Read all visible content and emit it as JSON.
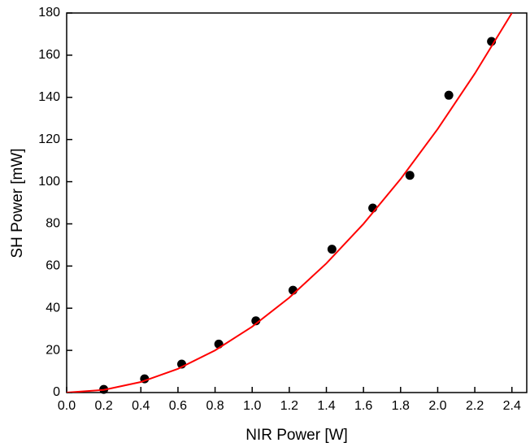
{
  "chart_data": {
    "type": "scatter",
    "x_label": "NIR Power [W]",
    "y_label": "SH Power [mW]",
    "xlim": [
      0,
      2.48
    ],
    "ylim": [
      0,
      180
    ],
    "xticks": [
      {
        "value": 0.0,
        "label": "0.0"
      },
      0.2,
      0.4,
      0.6,
      0.8,
      {
        "value": 1.0,
        "label": "1.0"
      },
      1.2,
      1.4,
      1.6,
      1.8,
      {
        "value": 2.0,
        "label": "2.0"
      },
      2.2,
      2.4
    ],
    "yticks": [
      0,
      20,
      40,
      60,
      80,
      100,
      120,
      140,
      160,
      180
    ],
    "series": [
      {
        "kind": "points",
        "color": "#000000",
        "x": [
          0.2,
          0.42,
          0.62,
          0.82,
          1.02,
          1.22,
          1.43,
          1.65,
          1.85,
          2.06,
          2.29
        ],
        "values": [
          1.5,
          6.5,
          13.5,
          23,
          34,
          48.5,
          68,
          87.5,
          103,
          141,
          166.5
        ]
      },
      {
        "kind": "line",
        "color": "#ff0000",
        "x": [
          0,
          0.2,
          0.4,
          0.6,
          0.8,
          1.0,
          1.2,
          1.4,
          1.6,
          1.8,
          2.0,
          2.2,
          2.4
        ],
        "values": [
          0,
          1.25,
          5,
          11.25,
          20,
          31.25,
          45,
          61.25,
          80,
          101.25,
          125,
          151.25,
          180
        ]
      }
    ]
  }
}
